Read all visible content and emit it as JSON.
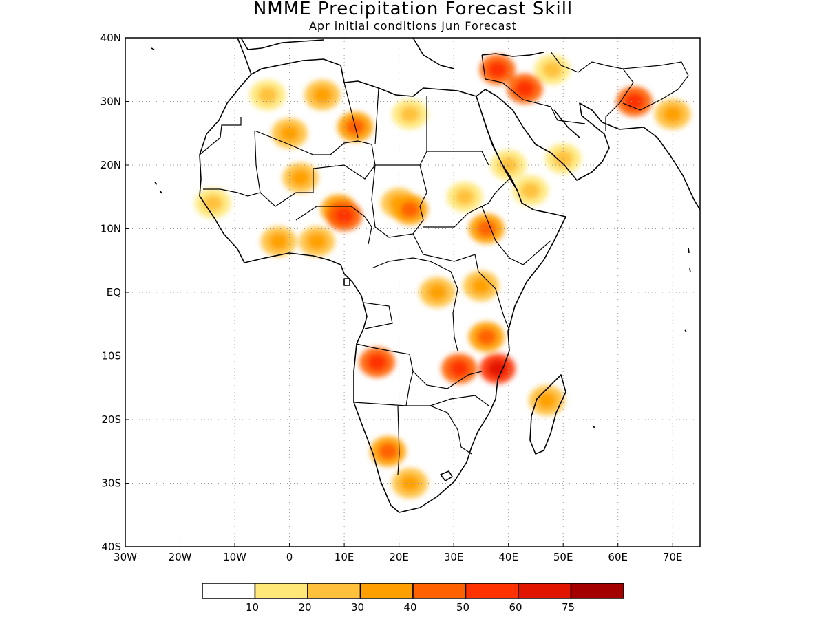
{
  "title": "NMME Precipitation Forecast Skill",
  "subtitle": "Apr initial conditions   Jun Forecast",
  "map": {
    "lon_range": [
      -30,
      75
    ],
    "lat_range": [
      -40,
      40
    ],
    "lat_ticks": [
      {
        "value": 40,
        "label": "40N"
      },
      {
        "value": 30,
        "label": "30N"
      },
      {
        "value": 20,
        "label": "20N"
      },
      {
        "value": 10,
        "label": "10N"
      },
      {
        "value": 0,
        "label": "EQ"
      },
      {
        "value": -10,
        "label": "10S"
      },
      {
        "value": -20,
        "label": "20S"
      },
      {
        "value": -30,
        "label": "30S"
      },
      {
        "value": -40,
        "label": "40S"
      }
    ],
    "lon_ticks": [
      {
        "value": -30,
        "label": "30W"
      },
      {
        "value": -20,
        "label": "20W"
      },
      {
        "value": -10,
        "label": "10W"
      },
      {
        "value": 0,
        "label": "0"
      },
      {
        "value": 10,
        "label": "10E"
      },
      {
        "value": 20,
        "label": "20E"
      },
      {
        "value": 30,
        "label": "30E"
      },
      {
        "value": 40,
        "label": "40E"
      },
      {
        "value": 50,
        "label": "50E"
      },
      {
        "value": 60,
        "label": "60E"
      },
      {
        "value": 70,
        "label": "70E"
      }
    ],
    "grid": "dotted",
    "skill_regions": [
      {
        "lon": -4,
        "lat": 31,
        "level": 2
      },
      {
        "lon": 6,
        "lat": 31,
        "level": 3
      },
      {
        "lon": 12,
        "lat": 26,
        "level": 4
      },
      {
        "lon": 0,
        "lat": 25,
        "level": 3
      },
      {
        "lon": 22,
        "lat": 28,
        "level": 2
      },
      {
        "lon": 2,
        "lat": 18,
        "level": 3
      },
      {
        "lon": 9,
        "lat": 13,
        "level": 4
      },
      {
        "lon": 10,
        "lat": 12,
        "level": 5
      },
      {
        "lon": 20,
        "lat": 14,
        "level": 3
      },
      {
        "lon": 22,
        "lat": 13,
        "level": 4
      },
      {
        "lon": -2,
        "lat": 8,
        "level": 3
      },
      {
        "lon": 5,
        "lat": 8,
        "level": 3
      },
      {
        "lon": -14,
        "lat": 14,
        "level": 2
      },
      {
        "lon": 36,
        "lat": 10,
        "level": 4
      },
      {
        "lon": 27,
        "lat": 0,
        "level": 3
      },
      {
        "lon": 35,
        "lat": 1,
        "level": 3
      },
      {
        "lon": 36,
        "lat": -7,
        "level": 4
      },
      {
        "lon": 38,
        "lat": -12,
        "level": 6
      },
      {
        "lon": 31,
        "lat": -12,
        "level": 5
      },
      {
        "lon": 16,
        "lat": -11,
        "level": 5
      },
      {
        "lon": 18,
        "lat": -25,
        "level": 4
      },
      {
        "lon": 22,
        "lat": -30,
        "level": 3
      },
      {
        "lon": 47,
        "lat": -17,
        "level": 3
      },
      {
        "lon": 38,
        "lat": 35,
        "level": 5
      },
      {
        "lon": 43,
        "lat": 32,
        "level": 5
      },
      {
        "lon": 48,
        "lat": 35,
        "level": 2
      },
      {
        "lon": 40,
        "lat": 20,
        "level": 2
      },
      {
        "lon": 50,
        "lat": 21,
        "level": 2
      },
      {
        "lon": 63,
        "lat": 30,
        "level": 5
      },
      {
        "lon": 70,
        "lat": 28,
        "level": 3
      },
      {
        "lon": 32,
        "lat": 15,
        "level": 2
      },
      {
        "lon": 44,
        "lat": 16,
        "level": 2
      }
    ]
  },
  "colorbar": {
    "colors": [
      "#ffffff",
      "#ffe878",
      "#ffc03c",
      "#ffa000",
      "#ff6000",
      "#ff3200",
      "#e11400",
      "#a50000"
    ],
    "labels": [
      "10",
      "20",
      "30",
      "40",
      "50",
      "60",
      "75"
    ]
  }
}
